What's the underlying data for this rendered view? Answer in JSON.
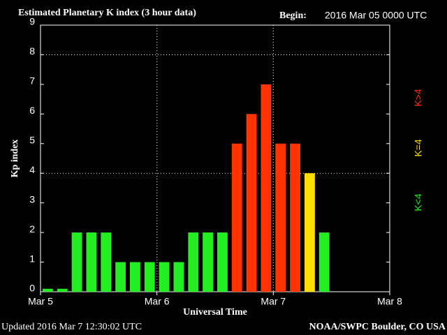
{
  "chart_data": {
    "type": "bar",
    "title": "Estimated Planetary K index (3 hour data)",
    "begin_label": "Begin:",
    "begin_value": "2016 Mar 05 0000 UTC",
    "y_label": "Kp index",
    "x_label": "Universal Time",
    "updated": "Updated 2016 Mar  7 12:30:02 UTC",
    "credit": "NOAA/SWPC Boulder, CO USA",
    "x": [
      0,
      0.125,
      0.25,
      0.375,
      0.5,
      0.625,
      0.75,
      0.875,
      1,
      1.125,
      1.25,
      1.375,
      1.5,
      1.625,
      1.75,
      1.875,
      2,
      2.125,
      2.25,
      2.375
    ],
    "values": [
      0.1,
      0.1,
      2,
      2,
      2,
      1,
      1,
      1,
      1,
      1,
      2,
      2,
      2,
      5,
      6,
      7,
      5,
      5,
      4,
      2
    ],
    "colors": [
      "#22ee22",
      "#22ee22",
      "#22ee22",
      "#22ee22",
      "#22ee22",
      "#22ee22",
      "#22ee22",
      "#22ee22",
      "#22ee22",
      "#22ee22",
      "#22ee22",
      "#22ee22",
      "#22ee22",
      "#ff3300",
      "#ff3300",
      "#ff3300",
      "#ff3300",
      "#ff3300",
      "#ffdd00",
      "#22ee22"
    ],
    "legend": [
      {
        "name": "K<4",
        "color": "#22ee22"
      },
      {
        "name": "K=4",
        "color": "#ffdd00"
      },
      {
        "name": "K>4",
        "color": "#ff3300"
      }
    ],
    "xlim": [
      0,
      3
    ],
    "xticks": [
      {
        "value": 0,
        "label": "Mar 5"
      },
      {
        "value": 1,
        "label": "Mar 6"
      },
      {
        "value": 2,
        "label": "Mar 7"
      },
      {
        "value": 3,
        "label": "Mar 8"
      }
    ],
    "ylim": [
      0,
      9
    ],
    "yticks": [
      0,
      1,
      2,
      3,
      4,
      5,
      6,
      7,
      8,
      9
    ],
    "grid_y": [
      4,
      8
    ]
  }
}
